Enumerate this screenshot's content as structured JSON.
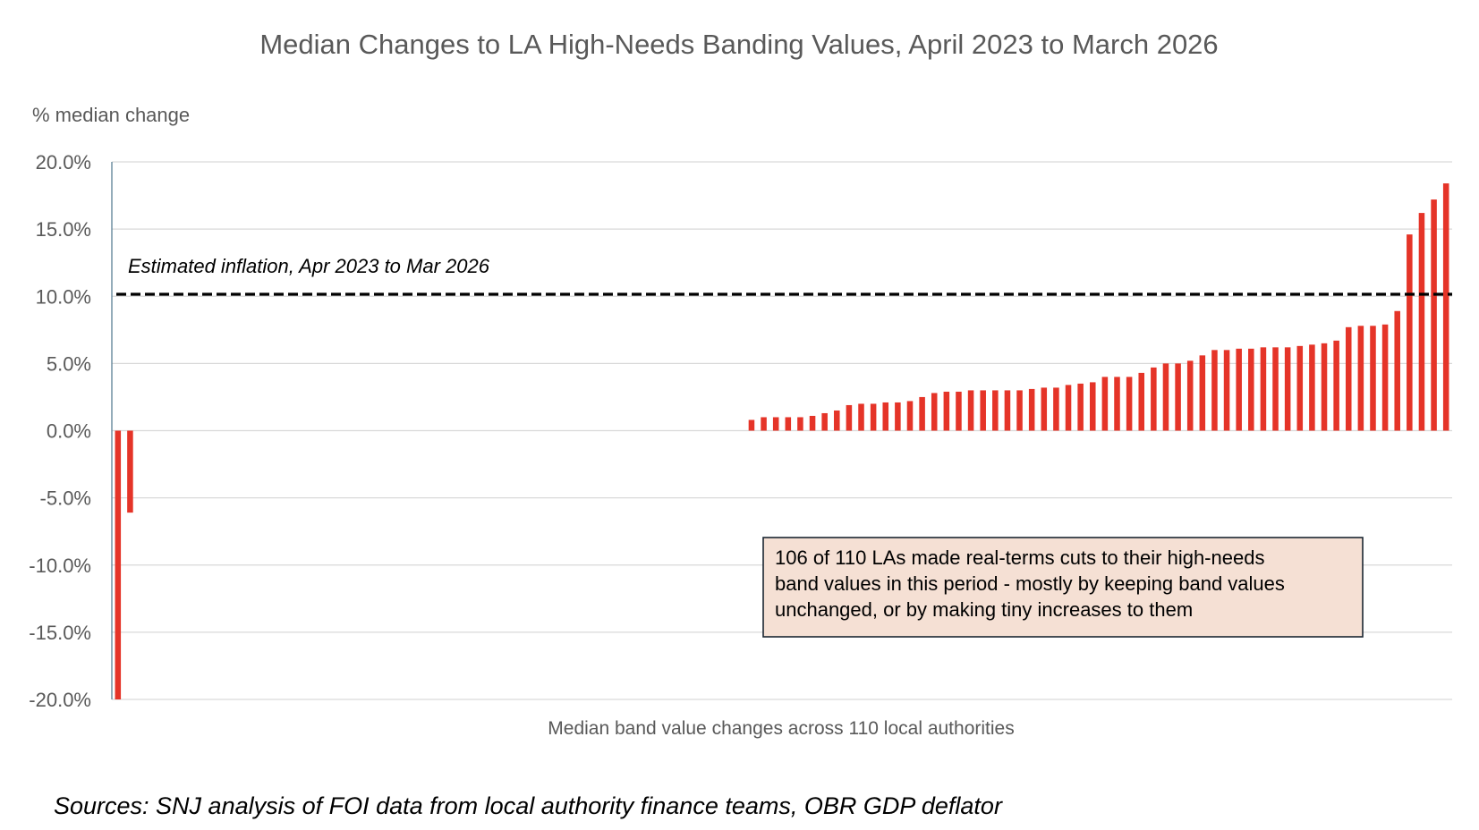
{
  "chart_data": {
    "type": "bar",
    "title": "Median Changes to LA High-Needs Banding Values, April 2023 to March 2026",
    "ylabel": "% median change",
    "xlabel": "Median band value changes across 110 local authorities",
    "ylim": [
      -20,
      20
    ],
    "yticks": [
      20,
      15,
      10,
      5,
      0,
      -5,
      -10,
      -15,
      -20
    ],
    "ytick_labels": [
      "20.0%",
      "15.0%",
      "10.0%",
      "5.0%",
      "0.0%",
      "-5.0%",
      "-10.0%",
      "-15.0%",
      "-20.0%"
    ],
    "grid": true,
    "bar_color": "#E53428",
    "n_categories": 110,
    "values": [
      -20.0,
      -6.1,
      0,
      0,
      0,
      0,
      0,
      0,
      0,
      0,
      0,
      0,
      0,
      0,
      0,
      0,
      0,
      0,
      0,
      0,
      0,
      0,
      0,
      0,
      0,
      0,
      0,
      0,
      0,
      0,
      0,
      0,
      0,
      0,
      0,
      0,
      0,
      0,
      0,
      0,
      0,
      0,
      0,
      0,
      0,
      0,
      0,
      0,
      0,
      0,
      0,
      0,
      0.8,
      1.0,
      1.0,
      1.0,
      1.0,
      1.1,
      1.3,
      1.5,
      1.9,
      2.0,
      2.0,
      2.1,
      2.1,
      2.2,
      2.5,
      2.8,
      2.9,
      2.9,
      3.0,
      3.0,
      3.0,
      3.0,
      3.0,
      3.1,
      3.2,
      3.2,
      3.4,
      3.5,
      3.6,
      4.0,
      4.0,
      4.0,
      4.3,
      4.7,
      5.0,
      5.0,
      5.2,
      5.6,
      6.0,
      6.0,
      6.1,
      6.1,
      6.2,
      6.2,
      6.2,
      6.3,
      6.4,
      6.5,
      6.7,
      7.7,
      7.8,
      7.8,
      7.9,
      8.9,
      14.6,
      16.2,
      17.2,
      18.4
    ],
    "reference_line": {
      "label": "Estimated inflation, Apr 2023 to Mar 2026",
      "value": 10.15,
      "style": "dashed",
      "color": "#000000"
    },
    "annotation": {
      "lines": [
        "106 of 110 LAs made real-terms cuts to their high-needs",
        "band values in this period - mostly by keeping band values",
        "unchanged, or by making tiny increases to them"
      ],
      "fill": "#F5E0D4",
      "border": "#1B2631"
    },
    "source": "Sources: SNJ analysis of FOI data from local authority finance teams, OBR GDP deflator"
  }
}
